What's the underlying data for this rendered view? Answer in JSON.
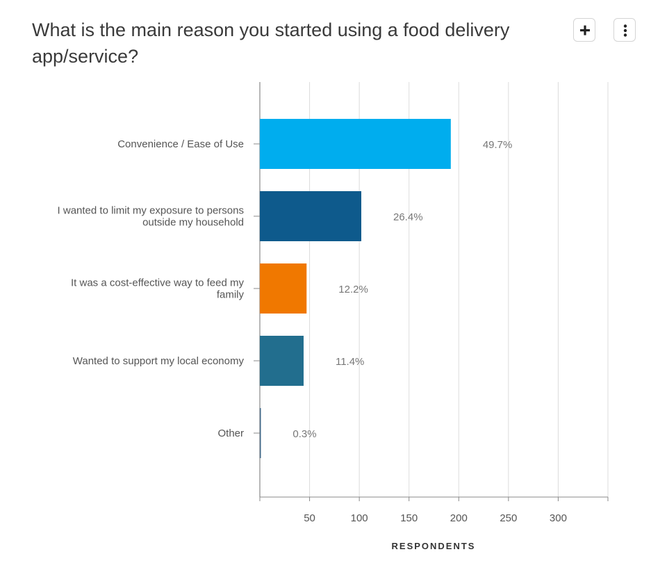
{
  "header": {
    "title": "What is the main reason you started using a food delivery app/service?",
    "add_icon": "plus-icon",
    "more_icon": "vertical-ellipsis-icon"
  },
  "chart_data": {
    "type": "bar",
    "orientation": "horizontal",
    "categories": [
      [
        "Convenience / Ease of Use"
      ],
      [
        "I wanted to limit my exposure to persons",
        "outside my household"
      ],
      [
        "It was a cost-effective way to feed my",
        "family"
      ],
      [
        "Wanted to support my local economy"
      ],
      [
        "Other"
      ]
    ],
    "values": [
      192,
      102,
      47,
      44,
      1
    ],
    "data_labels": [
      "49.7%",
      "26.4%",
      "12.2%",
      "11.4%",
      "0.3%"
    ],
    "colors": [
      "#00adee",
      "#0e5a8c",
      "#f07800",
      "#226e8e",
      "#3f6787"
    ],
    "xlabel": "RESPONDENTS",
    "xticks": [
      50,
      100,
      150,
      200,
      250,
      300
    ],
    "xlim": [
      0,
      350
    ],
    "grid": true,
    "legend": "none"
  }
}
